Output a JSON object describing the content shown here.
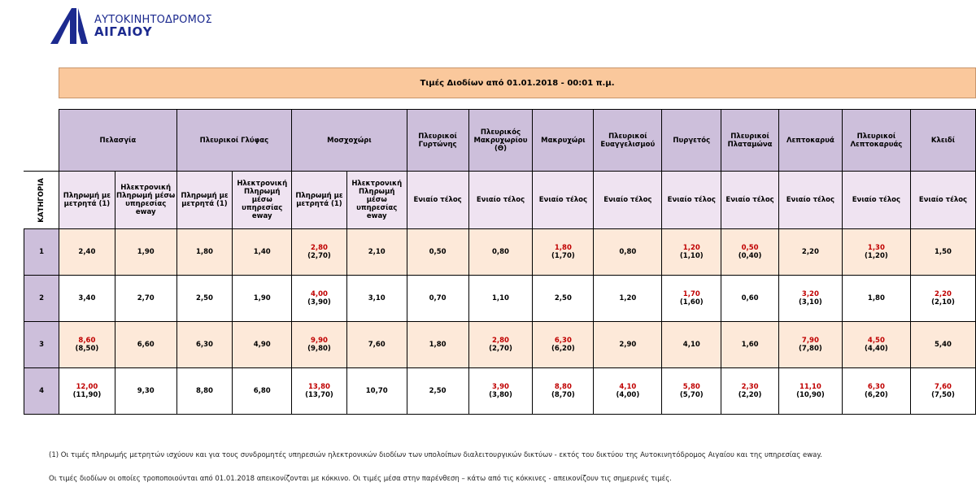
{
  "logo": {
    "line1": "ΑΥΤΟΚΙΝΗΤΟΔΡΟΜΟΣ",
    "line2": "ΑΙΓΑΙΟΥ",
    "color": "#1c2a8f"
  },
  "title": "Τιμές Διοδίων από  01.01.2018 - 00:01 π.μ.",
  "category_label": "ΚΑΤΗΓΟΡΙΑ",
  "stations": [
    {
      "name": "Πελασγία",
      "subs": [
        "Πληρωμή με μετρητά (1)",
        "Ηλεκτρονική Πληρωμή μέσω υπηρεσίας eway"
      ]
    },
    {
      "name": "Πλευρικοί Γλύφας",
      "subs": [
        "Πληρωμή με μετρητά (1)",
        "Ηλεκτρονική Πληρωμή μέσω υπηρεσίας eway"
      ]
    },
    {
      "name": "Μοσχοχώρι",
      "subs": [
        "Πληρωμή με μετρητά (1)",
        "Ηλεκτρονική Πληρωμή μέσω υπηρεσίας eway"
      ]
    },
    {
      "name": "Πλευρικοί Γυρτώνης",
      "subs": [
        "Ενιαίο τέλος"
      ]
    },
    {
      "name": "Πλευρικός Μακρυχωρίου (Θ)",
      "subs": [
        "Ενιαίο τέλος"
      ]
    },
    {
      "name": "Μακρυχώρι",
      "subs": [
        "Ενιαίο τέλος"
      ]
    },
    {
      "name": "Πλευρικοί Ευαγγελισμού",
      "subs": [
        "Ενιαίο τέλος"
      ]
    },
    {
      "name": "Πυργετός",
      "subs": [
        "Ενιαίο τέλος"
      ]
    },
    {
      "name": "Πλευρικοί Πλαταμώνα",
      "subs": [
        "Ενιαίο τέλος"
      ]
    },
    {
      "name": "Λεπτοκαρυά",
      "subs": [
        "Ενιαίο τέλος"
      ]
    },
    {
      "name": "Πλευρικοί Λεπτοκαρυάς",
      "subs": [
        "Ενιαίο τέλος"
      ]
    },
    {
      "name": "Κλειδί",
      "subs": [
        "Ενιαίο τέλος"
      ]
    }
  ],
  "rows": [
    {
      "category": "1",
      "cells": [
        {
          "v": "2,40"
        },
        {
          "v": "1,90"
        },
        {
          "v": "1,80"
        },
        {
          "v": "1,40"
        },
        {
          "v": "2,80",
          "old": "(2,70)",
          "changed": true
        },
        {
          "v": "2,10"
        },
        {
          "v": "0,50"
        },
        {
          "v": "0,80"
        },
        {
          "v": "1,80",
          "old": "(1,70)",
          "changed": true
        },
        {
          "v": "0,80"
        },
        {
          "v": "1,20",
          "old": "(1,10)",
          "changed": true
        },
        {
          "v": "0,50",
          "old": "(0,40)",
          "changed": true
        },
        {
          "v": "2,20"
        },
        {
          "v": "1,30",
          "old": "(1,20)",
          "changed": true
        },
        {
          "v": "1,50"
        }
      ]
    },
    {
      "category": "2",
      "cells": [
        {
          "v": "3,40"
        },
        {
          "v": "2,70"
        },
        {
          "v": "2,50"
        },
        {
          "v": "1,90"
        },
        {
          "v": "4,00",
          "old": "(3,90)",
          "changed": true
        },
        {
          "v": "3,10"
        },
        {
          "v": "0,70"
        },
        {
          "v": "1,10"
        },
        {
          "v": "2,50"
        },
        {
          "v": "1,20"
        },
        {
          "v": "1,70",
          "old": "(1,60)",
          "changed": true
        },
        {
          "v": "0,60"
        },
        {
          "v": "3,20",
          "old": "(3,10)",
          "changed": true
        },
        {
          "v": "1,80"
        },
        {
          "v": "2,20",
          "old": "(2,10)",
          "changed": true
        }
      ]
    },
    {
      "category": "3",
      "cells": [
        {
          "v": "8,60",
          "old": "(8,50)",
          "changed": true
        },
        {
          "v": "6,60"
        },
        {
          "v": "6,30"
        },
        {
          "v": "4,90"
        },
        {
          "v": "9,90",
          "old": "(9,80)",
          "changed": true
        },
        {
          "v": "7,60"
        },
        {
          "v": "1,80"
        },
        {
          "v": "2,80",
          "old": "(2,70)",
          "changed": true
        },
        {
          "v": "6,30",
          "old": "(6,20)",
          "changed": true
        },
        {
          "v": "2,90"
        },
        {
          "v": "4,10"
        },
        {
          "v": "1,60"
        },
        {
          "v": "7,90",
          "old": "(7,80)",
          "changed": true
        },
        {
          "v": "4,50",
          "old": "(4,40)",
          "changed": true
        },
        {
          "v": "5,40"
        }
      ]
    },
    {
      "category": "4",
      "cells": [
        {
          "v": "12,00",
          "old": "(11,90)",
          "changed": true
        },
        {
          "v": "9,30"
        },
        {
          "v": "8,80"
        },
        {
          "v": "6,80"
        },
        {
          "v": "13,80",
          "old": "(13,70)",
          "changed": true
        },
        {
          "v": "10,70"
        },
        {
          "v": "2,50"
        },
        {
          "v": "3,90",
          "old": "(3,80)",
          "changed": true
        },
        {
          "v": "8,80",
          "old": "(8,70)",
          "changed": true
        },
        {
          "v": "4,10",
          "old": "(4,00)",
          "changed": true
        },
        {
          "v": "5,80",
          "old": "(5,70)",
          "changed": true
        },
        {
          "v": "2,30",
          "old": "(2,20)",
          "changed": true
        },
        {
          "v": "11,10",
          "old": "(10,90)",
          "changed": true
        },
        {
          "v": "6,30",
          "old": "(6,20)",
          "changed": true
        },
        {
          "v": "7,60",
          "old": "(7,50)",
          "changed": true
        }
      ]
    }
  ],
  "notes": {
    "note1": "(1)  Οι τιμές πληρωμής μετρητών ισχύουν και για τους συνδρομητές υπηρεσιών ηλεκτρονικών διοδίων των υπολοίπων διαλειτουργικών δικτύων - εκτός του δικτύου της Αυτοκινητόδρομος Αιγαίου και της υπηρεσίας eway.",
    "note2": "Οι τιμές διοδίων οι οποίες τροποποιούνται από 01.01.2018 απεικονίζονται με κόκκινο. Οι τιμές μέσα στην παρένθεση – κάτω από τις κόκκινες - απεικονίζουν τις σημερινές τιμές."
  },
  "colors": {
    "title_bg": "#fac89c",
    "header_bg": "#cdbfdb",
    "subheader_bg": "#efe3f1",
    "row_odd_bg": "#fde9d9",
    "changed_text": "#c00000"
  }
}
